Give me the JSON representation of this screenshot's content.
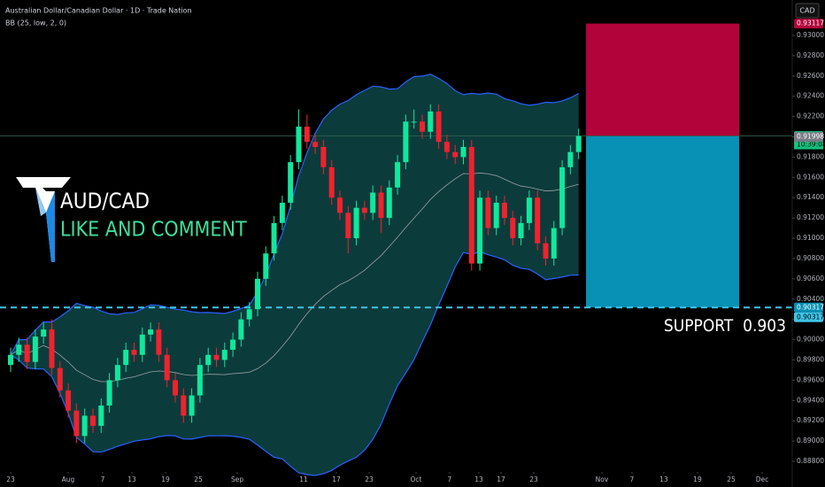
{
  "chart_data": {
    "type": "candlestick",
    "title": "Australian Dollar/Canadian Dollar · 1D · Trade Nation",
    "indicator": {
      "label": "BB (25, low, 2, 0)",
      "period": 25,
      "stddev": 2,
      "fill": "#0c3b3b",
      "band_color": "#2962ff",
      "basis_color": "#9aa3a3"
    },
    "currency": "CAD",
    "overlay_title": "AUD/CAD",
    "overlay_subtitle": "LIKE AND COMMENT",
    "up_color": "#10e89c",
    "down_color": "#f0222e",
    "x": [
      0,
      1,
      2,
      3,
      4,
      5,
      6,
      7,
      8,
      9,
      10,
      11,
      12,
      13,
      14,
      15,
      16,
      17,
      18,
      19,
      20,
      21,
      22,
      23,
      24,
      25,
      26,
      27,
      28,
      29,
      30,
      31,
      32,
      33,
      34,
      35,
      36,
      37,
      38,
      39,
      40,
      41,
      42,
      43,
      44,
      45,
      46,
      47,
      48,
      49,
      50,
      51,
      52,
      53,
      54,
      55,
      56,
      57,
      58,
      59,
      60,
      61,
      62,
      63,
      64,
      65,
      66,
      67,
      68,
      69
    ],
    "open": [
      0.8975,
      0.8985,
      0.8995,
      0.8978,
      0.9003,
      0.901,
      0.8972,
      0.895,
      0.893,
      0.8905,
      0.8925,
      0.8915,
      0.8935,
      0.896,
      0.8975,
      0.899,
      0.8985,
      0.9005,
      0.901,
      0.8985,
      0.896,
      0.8945,
      0.8925,
      0.8945,
      0.8975,
      0.8985,
      0.898,
      0.899,
      0.9,
      0.902,
      0.903,
      0.906,
      0.9085,
      0.9115,
      0.9135,
      0.9175,
      0.921,
      0.9195,
      0.919,
      0.917,
      0.914,
      0.9125,
      0.91,
      0.913,
      0.9125,
      0.9145,
      0.912,
      0.915,
      0.9175,
      0.9215,
      0.9215,
      0.9205,
      0.9225,
      0.9195,
      0.9185,
      0.918,
      0.919,
      0.9075,
      0.914,
      0.911,
      0.9135,
      0.912,
      0.91,
      0.9115,
      0.914,
      0.9095,
      0.908,
      0.911,
      0.917,
      0.9185
    ],
    "high": [
      0.8992,
      0.9002,
      0.9002,
      0.901,
      0.9017,
      0.902,
      0.8979,
      0.8957,
      0.8937,
      0.8932,
      0.8932,
      0.8942,
      0.8967,
      0.8982,
      0.8997,
      0.8997,
      0.9012,
      0.9017,
      0.9017,
      0.8992,
      0.8967,
      0.8952,
      0.8952,
      0.8982,
      0.8992,
      0.8992,
      0.8997,
      0.9007,
      0.9027,
      0.9037,
      0.9067,
      0.9092,
      0.9122,
      0.9142,
      0.9182,
      0.9227,
      0.9222,
      0.9202,
      0.9197,
      0.9177,
      0.9147,
      0.9132,
      0.9137,
      0.9137,
      0.9152,
      0.9152,
      0.9157,
      0.9182,
      0.9222,
      0.9227,
      0.9222,
      0.9232,
      0.9232,
      0.9202,
      0.9192,
      0.9197,
      0.9197,
      0.9147,
      0.9147,
      0.9142,
      0.9142,
      0.9127,
      0.9122,
      0.9147,
      0.9147,
      0.9102,
      0.9117,
      0.9177,
      0.9192,
      0.9208
    ],
    "low": [
      0.8968,
      0.8978,
      0.8971,
      0.8971,
      0.8996,
      0.8965,
      0.8943,
      0.8923,
      0.8898,
      0.8898,
      0.8908,
      0.8908,
      0.8928,
      0.8953,
      0.8968,
      0.8978,
      0.8978,
      0.8998,
      0.8978,
      0.8953,
      0.8938,
      0.8918,
      0.8918,
      0.8938,
      0.8968,
      0.8973,
      0.8973,
      0.8983,
      0.8993,
      0.9013,
      0.9023,
      0.9053,
      0.9078,
      0.9108,
      0.9128,
      0.9168,
      0.9188,
      0.9183,
      0.9163,
      0.9133,
      0.9118,
      0.9085,
      0.9093,
      0.9118,
      0.9118,
      0.9105,
      0.9113,
      0.9143,
      0.9168,
      0.9208,
      0.9198,
      0.9198,
      0.9188,
      0.9178,
      0.9173,
      0.9173,
      0.9068,
      0.9068,
      0.9103,
      0.9103,
      0.9113,
      0.9093,
      0.9093,
      0.9108,
      0.9088,
      0.9073,
      0.9073,
      0.9103,
      0.9163,
      0.9178
    ],
    "close": [
      0.8985,
      0.8995,
      0.8978,
      0.9003,
      0.901,
      0.8972,
      0.895,
      0.893,
      0.8905,
      0.8925,
      0.8915,
      0.8935,
      0.896,
      0.8975,
      0.899,
      0.8985,
      0.9005,
      0.901,
      0.8985,
      0.896,
      0.8945,
      0.8925,
      0.8945,
      0.8975,
      0.8985,
      0.898,
      0.899,
      0.9,
      0.902,
      0.903,
      0.906,
      0.9085,
      0.9115,
      0.9135,
      0.9175,
      0.921,
      0.9195,
      0.919,
      0.917,
      0.914,
      0.9125,
      0.91,
      0.913,
      0.9125,
      0.9145,
      0.912,
      0.915,
      0.9175,
      0.9215,
      0.9215,
      0.9205,
      0.9225,
      0.9195,
      0.9185,
      0.918,
      0.919,
      0.9075,
      0.914,
      0.911,
      0.9135,
      0.912,
      0.91,
      0.9115,
      0.914,
      0.9095,
      0.908,
      0.911,
      0.917,
      0.9185,
      0.92008
    ],
    "xlim": [
      -1.29,
      94.95
    ],
    "xticks": [
      {
        "value": 0,
        "label": "23"
      },
      {
        "value": 6.99,
        "label": "Aug"
      },
      {
        "value": 11.18,
        "label": "7"
      },
      {
        "value": 14.73,
        "label": "13"
      },
      {
        "value": 18.82,
        "label": "19"
      },
      {
        "value": 22.8,
        "label": "25"
      },
      {
        "value": 27.53,
        "label": "Sep"
      },
      {
        "value": 35.59,
        "label": "11"
      },
      {
        "value": 39.57,
        "label": "17"
      },
      {
        "value": 43.55,
        "label": "23"
      },
      {
        "value": 49.25,
        "label": "Oct"
      },
      {
        "value": 53.33,
        "label": "7"
      },
      {
        "value": 56.88,
        "label": "13"
      },
      {
        "value": 59.57,
        "label": "17"
      },
      {
        "value": 63.55,
        "label": "23"
      },
      {
        "value": 71.83,
        "label": "Nov"
      },
      {
        "value": 75.48,
        "label": "7"
      },
      {
        "value": 79.35,
        "label": "13"
      },
      {
        "value": 83.44,
        "label": "19"
      },
      {
        "value": 87.53,
        "label": "25"
      },
      {
        "value": 91.29,
        "label": "Dec"
      }
    ],
    "ylim": [
      0.88704,
      0.93349
    ],
    "yticks": [
      {
        "value": 0.888,
        "label": "0.88800"
      },
      {
        "value": 0.89,
        "label": "0.89000"
      },
      {
        "value": 0.892,
        "label": "0.89200"
      },
      {
        "value": 0.894,
        "label": "0.89400"
      },
      {
        "value": 0.896,
        "label": "0.89600"
      },
      {
        "value": 0.898,
        "label": "0.89800"
      },
      {
        "value": 0.9,
        "label": "0.90000"
      },
      {
        "value": 0.902,
        "label": "0.90200"
      },
      {
        "value": 0.904,
        "label": "0.90400"
      },
      {
        "value": 0.906,
        "label": "0.90600"
      },
      {
        "value": 0.908,
        "label": "0.90800"
      },
      {
        "value": 0.91,
        "label": "0.91000"
      },
      {
        "value": 0.912,
        "label": "0.91200"
      },
      {
        "value": 0.914,
        "label": "0.91400"
      },
      {
        "value": 0.916,
        "label": "0.91600"
      },
      {
        "value": 0.918,
        "label": "0.91800"
      },
      {
        "value": 0.92,
        "label": "0.92000"
      },
      {
        "value": 0.922,
        "label": "0.92200"
      },
      {
        "value": 0.924,
        "label": "0.92400"
      },
      {
        "value": 0.926,
        "label": "0.92600"
      },
      {
        "value": 0.928,
        "label": "0.92800"
      },
      {
        "value": 0.93,
        "label": "0.93000"
      }
    ],
    "countdown": "10:39:08",
    "bid_tag": 0.91998,
    "position": {
      "entry": 0.92008,
      "stop": 0.93117,
      "target": 0.90317,
      "x_start": 69.9,
      "x_end": 88.5,
      "stop_color": "#b2033a",
      "target_color": "#0890b5"
    },
    "support": {
      "value": 0.90317,
      "label": "SUPPORT  0.903",
      "color": "#3fc5e8"
    }
  }
}
